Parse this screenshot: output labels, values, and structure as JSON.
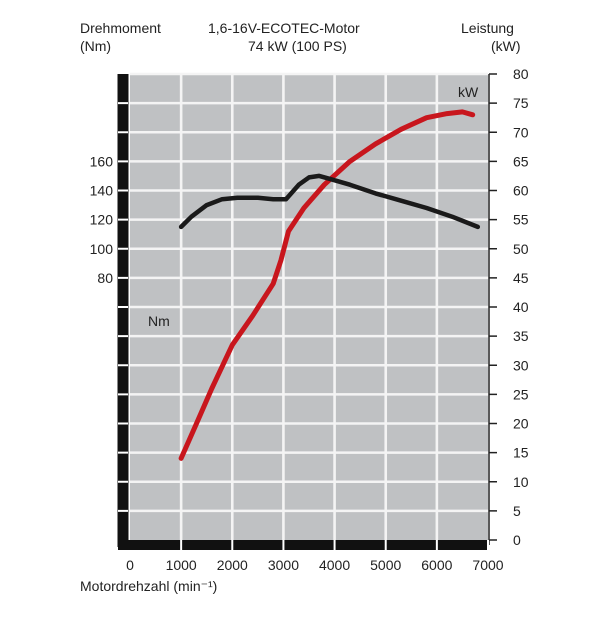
{
  "chart_data": {
    "type": "line",
    "title": "1,6-16V-ECOTEC-Motor",
    "subtitle": "74 kW (100 PS)",
    "xlabel": "Motordrehzahl (min⁻¹)",
    "y_left_label": "Drehmoment",
    "y_left_unit": "(Nm)",
    "y_right_label": "Leistung",
    "y_right_unit": "(kW)",
    "xlim": [
      0,
      7000
    ],
    "x_ticks": [
      0,
      1000,
      2000,
      3000,
      4000,
      5000,
      6000,
      7000
    ],
    "y_right_lim": [
      0,
      80
    ],
    "y_right_ticks": [
      0,
      5,
      10,
      15,
      20,
      25,
      30,
      35,
      40,
      45,
      50,
      55,
      60,
      65,
      70,
      75,
      80
    ],
    "y_left_lim": [
      -100,
      220
    ],
    "y_left_ticks": [
      80,
      100,
      120,
      140,
      160
    ],
    "grid": true,
    "series": [
      {
        "name": "kW",
        "axis": "right",
        "color": "#c8161d",
        "x": [
          1000,
          1300,
          1600,
          2000,
          2400,
          2800,
          2950,
          3100,
          3400,
          3800,
          4300,
          4800,
          5300,
          5800,
          6200,
          6500,
          6700
        ],
        "values": [
          14,
          20,
          26,
          33.5,
          38.5,
          44,
          48,
          53,
          57,
          61,
          65,
          68,
          70.5,
          72.5,
          73.2,
          73.5,
          73
        ]
      },
      {
        "name": "Nm",
        "axis": "left",
        "color": "#1a1a1a",
        "x": [
          1000,
          1200,
          1500,
          1800,
          2100,
          2500,
          2800,
          3050,
          3300,
          3500,
          3700,
          3900,
          4300,
          4800,
          5300,
          5800,
          6300,
          6800
        ],
        "values": [
          115,
          122,
          130,
          134,
          135,
          135,
          134,
          134,
          144,
          149,
          150,
          148,
          144,
          138,
          133,
          128,
          122,
          115
        ]
      }
    ]
  }
}
